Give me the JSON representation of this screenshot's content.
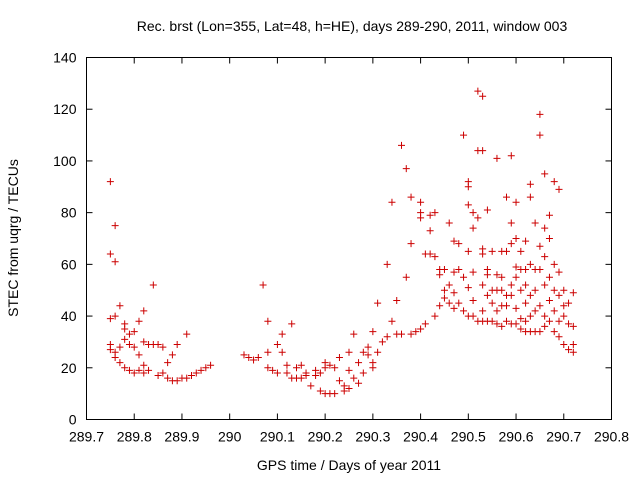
{
  "chart_data": {
    "type": "scatter",
    "title": "Rec. brst (Lon=355, Lat=48, h=HE), days 289-290, 2011, window 003",
    "xlabel": "GPS time / Days of year 2011",
    "ylabel": "STEC from uqrg / TECUs",
    "xlim": [
      289.7,
      290.8
    ],
    "ylim": [
      0,
      140
    ],
    "xticks": [
      289.7,
      289.8,
      289.9,
      290,
      290.1,
      290.2,
      290.3,
      290.4,
      290.5,
      290.6,
      290.7,
      290.8
    ],
    "xtick_labels": [
      "289.7",
      "289.8",
      "289.9",
      "290",
      "290.1",
      "290.2",
      "290.3",
      "290.4",
      "290.5",
      "290.6",
      "290.7",
      "290.8"
    ],
    "yticks": [
      0,
      20,
      40,
      60,
      80,
      100,
      120,
      140
    ],
    "ytick_labels": [
      "0",
      "20",
      "40",
      "60",
      "80",
      "100",
      "120",
      "140"
    ],
    "grid": false,
    "marker": "plus",
    "color": "#cc0000",
    "points": [
      [
        289.75,
        92
      ],
      [
        289.75,
        64
      ],
      [
        289.76,
        75
      ],
      [
        289.76,
        61
      ],
      [
        289.75,
        39
      ],
      [
        289.76,
        40
      ],
      [
        289.77,
        44
      ],
      [
        289.75,
        29
      ],
      [
        289.75,
        27
      ],
      [
        289.76,
        26
      ],
      [
        289.76,
        24
      ],
      [
        289.77,
        28
      ],
      [
        289.77,
        22
      ],
      [
        289.78,
        37
      ],
      [
        289.78,
        35
      ],
      [
        289.78,
        31
      ],
      [
        289.78,
        20
      ],
      [
        289.79,
        33
      ],
      [
        289.79,
        29
      ],
      [
        289.79,
        19
      ],
      [
        289.8,
        34
      ],
      [
        289.8,
        28
      ],
      [
        289.8,
        18
      ],
      [
        289.81,
        38
      ],
      [
        289.81,
        25
      ],
      [
        289.81,
        19
      ],
      [
        289.82,
        42
      ],
      [
        289.82,
        30
      ],
      [
        289.82,
        21
      ],
      [
        289.82,
        18
      ],
      [
        289.83,
        29
      ],
      [
        289.83,
        19
      ],
      [
        289.84,
        52
      ],
      [
        289.84,
        29
      ],
      [
        289.85,
        29
      ],
      [
        289.85,
        17
      ],
      [
        289.86,
        28
      ],
      [
        289.86,
        18
      ],
      [
        289.87,
        22
      ],
      [
        289.87,
        16
      ],
      [
        289.88,
        25
      ],
      [
        289.88,
        15
      ],
      [
        289.89,
        29
      ],
      [
        289.89,
        15
      ],
      [
        289.9,
        16
      ],
      [
        289.91,
        33
      ],
      [
        289.91,
        16
      ],
      [
        289.92,
        17
      ],
      [
        289.93,
        18
      ],
      [
        289.94,
        19
      ],
      [
        289.95,
        20
      ],
      [
        289.96,
        21
      ],
      [
        290.03,
        25
      ],
      [
        290.04,
        24
      ],
      [
        290.05,
        23
      ],
      [
        290.06,
        24
      ],
      [
        290.07,
        52
      ],
      [
        290.08,
        38
      ],
      [
        290.08,
        26
      ],
      [
        290.08,
        20
      ],
      [
        290.09,
        19
      ],
      [
        290.1,
        29
      ],
      [
        290.1,
        18
      ],
      [
        290.11,
        33
      ],
      [
        290.11,
        26
      ],
      [
        290.12,
        18
      ],
      [
        290.12,
        21
      ],
      [
        290.13,
        37
      ],
      [
        290.13,
        16
      ],
      [
        290.14,
        20
      ],
      [
        290.14,
        16
      ],
      [
        290.15,
        21
      ],
      [
        290.15,
        16
      ],
      [
        290.16,
        18
      ],
      [
        290.16,
        17
      ],
      [
        290.17,
        13
      ],
      [
        290.18,
        17
      ],
      [
        290.18,
        19
      ],
      [
        290.19,
        11
      ],
      [
        290.19,
        18
      ],
      [
        290.2,
        22
      ],
      [
        290.2,
        20
      ],
      [
        290.2,
        10
      ],
      [
        290.21,
        21
      ],
      [
        290.21,
        10
      ],
      [
        290.22,
        20
      ],
      [
        290.22,
        10
      ],
      [
        290.23,
        24
      ],
      [
        290.23,
        15
      ],
      [
        290.24,
        13
      ],
      [
        290.24,
        11
      ],
      [
        290.25,
        26
      ],
      [
        290.25,
        19
      ],
      [
        290.25,
        12
      ],
      [
        290.26,
        33
      ],
      [
        290.26,
        16
      ],
      [
        290.27,
        14
      ],
      [
        290.27,
        22
      ],
      [
        290.28,
        18
      ],
      [
        290.28,
        26
      ],
      [
        290.29,
        28
      ],
      [
        290.29,
        25
      ],
      [
        290.3,
        34
      ],
      [
        290.3,
        22
      ],
      [
        290.3,
        20
      ],
      [
        290.31,
        45
      ],
      [
        290.31,
        26
      ],
      [
        290.32,
        30
      ],
      [
        290.33,
        60
      ],
      [
        290.33,
        32
      ],
      [
        290.34,
        84
      ],
      [
        290.34,
        38
      ],
      [
        290.35,
        46
      ],
      [
        290.35,
        33
      ],
      [
        290.36,
        106
      ],
      [
        290.36,
        33
      ],
      [
        290.37,
        97
      ],
      [
        290.37,
        55
      ],
      [
        290.38,
        68
      ],
      [
        290.38,
        33
      ],
      [
        290.38,
        86
      ],
      [
        290.39,
        34
      ],
      [
        290.4,
        84
      ],
      [
        290.4,
        80
      ],
      [
        290.4,
        78
      ],
      [
        290.4,
        35
      ],
      [
        290.41,
        64
      ],
      [
        290.41,
        37
      ],
      [
        290.42,
        79
      ],
      [
        290.42,
        73
      ],
      [
        290.42,
        64
      ],
      [
        290.43,
        63
      ],
      [
        290.43,
        40
      ],
      [
        290.43,
        80
      ],
      [
        290.44,
        58
      ],
      [
        290.44,
        44
      ],
      [
        290.44,
        56
      ],
      [
        290.45,
        58
      ],
      [
        290.45,
        50
      ],
      [
        290.45,
        47
      ],
      [
        290.46,
        76
      ],
      [
        290.46,
        52
      ],
      [
        290.46,
        45
      ],
      [
        290.47,
        69
      ],
      [
        290.47,
        57
      ],
      [
        290.47,
        49
      ],
      [
        290.47,
        43
      ],
      [
        290.48,
        68
      ],
      [
        290.48,
        58
      ],
      [
        290.48,
        45
      ],
      [
        290.49,
        110
      ],
      [
        290.49,
        55
      ],
      [
        290.49,
        42
      ],
      [
        290.5,
        92
      ],
      [
        290.5,
        90
      ],
      [
        290.5,
        83
      ],
      [
        290.5,
        65
      ],
      [
        290.5,
        51
      ],
      [
        290.5,
        40
      ],
      [
        290.51,
        80
      ],
      [
        290.51,
        74
      ],
      [
        290.51,
        57
      ],
      [
        290.51,
        46
      ],
      [
        290.51,
        40
      ],
      [
        290.52,
        127
      ],
      [
        290.52,
        104
      ],
      [
        290.52,
        78
      ],
      [
        290.52,
        38
      ],
      [
        290.53,
        125
      ],
      [
        290.53,
        104
      ],
      [
        290.53,
        66
      ],
      [
        290.53,
        64
      ],
      [
        290.53,
        52
      ],
      [
        290.53,
        42
      ],
      [
        290.53,
        38
      ],
      [
        290.54,
        81
      ],
      [
        290.54,
        58
      ],
      [
        290.54,
        56
      ],
      [
        290.54,
        48
      ],
      [
        290.54,
        38
      ],
      [
        290.55,
        65
      ],
      [
        290.55,
        50
      ],
      [
        290.55,
        45
      ],
      [
        290.55,
        38
      ],
      [
        290.56,
        101
      ],
      [
        290.56,
        56
      ],
      [
        290.56,
        50
      ],
      [
        290.56,
        42
      ],
      [
        290.56,
        37
      ],
      [
        290.57,
        65
      ],
      [
        290.57,
        55
      ],
      [
        290.57,
        50
      ],
      [
        290.57,
        44
      ],
      [
        290.57,
        36
      ],
      [
        290.58,
        86
      ],
      [
        290.58,
        65
      ],
      [
        290.58,
        48
      ],
      [
        290.58,
        44
      ],
      [
        290.58,
        38
      ],
      [
        290.59,
        102
      ],
      [
        290.59,
        76
      ],
      [
        290.59,
        68
      ],
      [
        290.59,
        52
      ],
      [
        290.59,
        48
      ],
      [
        290.59,
        37
      ],
      [
        290.6,
        84
      ],
      [
        290.6,
        70
      ],
      [
        290.6,
        59
      ],
      [
        290.6,
        55
      ],
      [
        290.6,
        43
      ],
      [
        290.6,
        37
      ],
      [
        290.61,
        65
      ],
      [
        290.61,
        58
      ],
      [
        290.61,
        50
      ],
      [
        290.61,
        39
      ],
      [
        290.61,
        35
      ],
      [
        290.62,
        69
      ],
      [
        290.62,
        58
      ],
      [
        290.62,
        52
      ],
      [
        290.62,
        45
      ],
      [
        290.62,
        38
      ],
      [
        290.62,
        34
      ],
      [
        290.63,
        91
      ],
      [
        290.63,
        86
      ],
      [
        290.63,
        60
      ],
      [
        290.63,
        48
      ],
      [
        290.63,
        40
      ],
      [
        290.63,
        34
      ],
      [
        290.64,
        76
      ],
      [
        290.64,
        58
      ],
      [
        290.64,
        50
      ],
      [
        290.64,
        42
      ],
      [
        290.64,
        34
      ],
      [
        290.65,
        118
      ],
      [
        290.65,
        110
      ],
      [
        290.65,
        67
      ],
      [
        290.65,
        58
      ],
      [
        290.65,
        44
      ],
      [
        290.65,
        34
      ],
      [
        290.66,
        95
      ],
      [
        290.66,
        74
      ],
      [
        290.66,
        63
      ],
      [
        290.66,
        52
      ],
      [
        290.66,
        40
      ],
      [
        290.66,
        36
      ],
      [
        290.67,
        79
      ],
      [
        290.67,
        70
      ],
      [
        290.67,
        55
      ],
      [
        290.67,
        46
      ],
      [
        290.67,
        38
      ],
      [
        290.68,
        92
      ],
      [
        290.68,
        60
      ],
      [
        290.68,
        50
      ],
      [
        290.68,
        42
      ],
      [
        290.68,
        34
      ],
      [
        290.69,
        89
      ],
      [
        290.69,
        57
      ],
      [
        290.69,
        48
      ],
      [
        290.69,
        38
      ],
      [
        290.69,
        32
      ],
      [
        290.7,
        50
      ],
      [
        290.7,
        44
      ],
      [
        290.7,
        40
      ],
      [
        290.7,
        29
      ],
      [
        290.71,
        45
      ],
      [
        290.71,
        37
      ],
      [
        290.71,
        27
      ],
      [
        290.72,
        49
      ],
      [
        290.72,
        36
      ],
      [
        290.72,
        29
      ],
      [
        290.72,
        26
      ]
    ]
  }
}
